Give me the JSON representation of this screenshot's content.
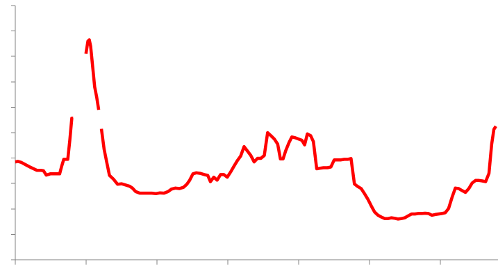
{
  "chart_data": {
    "type": "line",
    "title": "",
    "xlabel": "",
    "ylabel": "",
    "grid": false,
    "legend": "none",
    "ylim": [
      0,
      10
    ],
    "xlim": [
      0,
      100
    ],
    "x_ticks": [
      0,
      14.74,
      29.48,
      44.22,
      58.96,
      73.7,
      88.44
    ],
    "y_ticks": [
      0,
      1,
      2,
      3,
      4,
      5,
      6,
      7,
      8,
      9,
      10
    ],
    "series": [
      {
        "color": "#ff0000",
        "points": [
          [
            0.0,
            3.85
          ],
          [
            0.56,
            3.87
          ],
          [
            1.26,
            3.83
          ],
          [
            2.24,
            3.73
          ],
          [
            3.22,
            3.63
          ],
          [
            3.92,
            3.57
          ],
          [
            4.48,
            3.52
          ],
          [
            5.32,
            3.52
          ],
          [
            5.88,
            3.5
          ],
          [
            6.44,
            3.33
          ],
          [
            7.28,
            3.38
          ],
          [
            8.12,
            3.38
          ],
          [
            8.82,
            3.38
          ],
          [
            9.24,
            3.38
          ],
          [
            9.66,
            3.68
          ],
          [
            10.08,
            3.95
          ],
          [
            10.92,
            3.95
          ],
          [
            11.34,
            4.7
          ],
          [
            11.76,
            5.57
          ],
          [
            12.04,
            5.57
          ]
        ]
      },
      {
        "color": "#ff0000",
        "points": [
          [
            14.7,
            8.1
          ],
          [
            15.12,
            8.6
          ],
          [
            15.4,
            8.65
          ],
          [
            15.68,
            8.4
          ],
          [
            16.1,
            7.6
          ],
          [
            16.52,
            6.8
          ],
          [
            16.94,
            6.4
          ],
          [
            17.36,
            5.9
          ]
        ]
      },
      {
        "color": "#ff0000",
        "points": [
          [
            17.92,
            5.15
          ],
          [
            18.48,
            4.35
          ],
          [
            19.04,
            3.82
          ],
          [
            19.6,
            3.32
          ],
          [
            20.44,
            3.17
          ],
          [
            21.28,
            2.97
          ],
          [
            22.12,
            2.99
          ],
          [
            22.96,
            2.94
          ],
          [
            23.8,
            2.89
          ],
          [
            24.36,
            2.82
          ],
          [
            25.06,
            2.68
          ],
          [
            25.9,
            2.62
          ],
          [
            26.74,
            2.62
          ],
          [
            27.58,
            2.62
          ],
          [
            28.42,
            2.62
          ],
          [
            29.26,
            2.6
          ],
          [
            30.1,
            2.63
          ],
          [
            30.94,
            2.62
          ],
          [
            31.78,
            2.68
          ],
          [
            32.48,
            2.78
          ],
          [
            33.32,
            2.82
          ],
          [
            34.16,
            2.8
          ],
          [
            35.0,
            2.85
          ],
          [
            35.7,
            2.97
          ],
          [
            36.26,
            3.12
          ],
          [
            36.96,
            3.38
          ],
          [
            37.66,
            3.42
          ],
          [
            38.5,
            3.4
          ],
          [
            39.34,
            3.35
          ],
          [
            40.04,
            3.32
          ],
          [
            40.6,
            3.07
          ],
          [
            41.3,
            3.25
          ],
          [
            42.0,
            3.13
          ],
          [
            42.7,
            3.35
          ],
          [
            43.4,
            3.35
          ],
          [
            44.1,
            3.25
          ],
          [
            44.8,
            3.45
          ],
          [
            45.5,
            3.68
          ],
          [
            46.2,
            3.9
          ],
          [
            46.9,
            4.08
          ],
          [
            47.6,
            4.45
          ],
          [
            48.3,
            4.28
          ],
          [
            49.0,
            4.1
          ],
          [
            49.7,
            3.85
          ],
          [
            50.4,
            3.99
          ],
          [
            51.1,
            3.99
          ],
          [
            51.8,
            4.1
          ],
          [
            52.5,
            5.0
          ],
          [
            53.2,
            4.88
          ],
          [
            53.9,
            4.75
          ],
          [
            54.6,
            4.55
          ],
          [
            55.16,
            3.97
          ],
          [
            55.72,
            3.97
          ],
          [
            56.28,
            4.3
          ],
          [
            56.98,
            4.62
          ],
          [
            57.54,
            4.83
          ],
          [
            58.24,
            4.8
          ],
          [
            58.94,
            4.75
          ],
          [
            59.64,
            4.7
          ],
          [
            60.2,
            4.52
          ],
          [
            60.76,
            4.95
          ],
          [
            61.46,
            4.88
          ],
          [
            62.02,
            4.65
          ],
          [
            62.72,
            3.58
          ],
          [
            63.42,
            3.6
          ],
          [
            64.12,
            3.62
          ],
          [
            64.96,
            3.62
          ],
          [
            65.66,
            3.65
          ],
          [
            66.36,
            3.93
          ],
          [
            67.06,
            3.93
          ],
          [
            67.76,
            3.93
          ],
          [
            68.46,
            3.95
          ],
          [
            69.16,
            3.95
          ],
          [
            69.86,
            3.98
          ],
          [
            70.56,
            2.98
          ],
          [
            71.26,
            2.88
          ],
          [
            71.96,
            2.8
          ],
          [
            72.66,
            2.6
          ],
          [
            73.36,
            2.38
          ],
          [
            74.06,
            2.12
          ],
          [
            74.76,
            1.88
          ],
          [
            75.46,
            1.75
          ],
          [
            76.16,
            1.68
          ],
          [
            76.86,
            1.62
          ],
          [
            77.56,
            1.62
          ],
          [
            78.26,
            1.65
          ],
          [
            78.96,
            1.63
          ],
          [
            79.66,
            1.6
          ],
          [
            80.36,
            1.62
          ],
          [
            81.06,
            1.65
          ],
          [
            81.76,
            1.73
          ],
          [
            82.46,
            1.8
          ],
          [
            83.16,
            1.8
          ],
          [
            83.86,
            1.82
          ],
          [
            84.56,
            1.82
          ],
          [
            85.26,
            1.83
          ],
          [
            85.96,
            1.82
          ],
          [
            86.66,
            1.75
          ],
          [
            87.36,
            1.78
          ],
          [
            88.06,
            1.8
          ],
          [
            88.76,
            1.82
          ],
          [
            89.46,
            1.85
          ],
          [
            90.16,
            2.02
          ],
          [
            90.86,
            2.45
          ],
          [
            91.56,
            2.82
          ],
          [
            92.26,
            2.8
          ],
          [
            92.96,
            2.72
          ],
          [
            93.66,
            2.65
          ],
          [
            94.36,
            2.8
          ],
          [
            95.06,
            3.02
          ],
          [
            95.76,
            3.12
          ],
          [
            96.46,
            3.12
          ],
          [
            97.16,
            3.1
          ],
          [
            97.86,
            3.07
          ],
          [
            98.56,
            3.4
          ],
          [
            99.12,
            4.55
          ],
          [
            99.58,
            5.13
          ],
          [
            100.0,
            5.25
          ]
        ]
      }
    ]
  }
}
